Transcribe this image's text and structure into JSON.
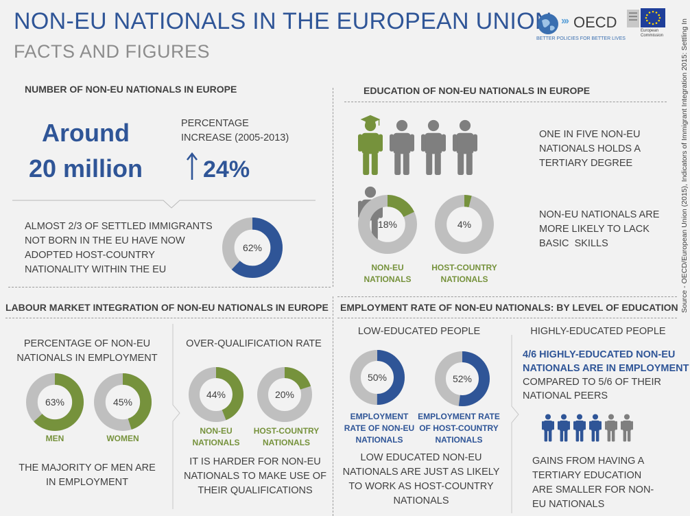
{
  "header": {
    "title": "NON-EU NATIONALS IN THE EUROPEAN UNION",
    "subtitle": "FACTS AND FIGURES",
    "oecd_logo_text": "OECD",
    "oecd_tagline": "BETTER POLICIES FOR BETTER LIVES",
    "ec_logo_text": "European Commission",
    "source": "Source - OECD/European Union (2015), Indicators of Immigrant Integration 2015: Settling In"
  },
  "number_section": {
    "heading": "NUMBER OF NON-EU NATIONALS IN EUROPE",
    "big_line1": "Around",
    "big_line2": "20 million",
    "pct_label_line1": "PERCENTAGE",
    "pct_label_line2": "INCREASE (2005-2013)",
    "increase_value": "24%",
    "nationality_text": [
      "ALMOST 2/3 OF SETTLED IMMIGRANTS",
      "NOT BORN IN THE EU HAVE NOW",
      "ADOPTED HOST-COUNTRY",
      "NATIONALITY WITHIN THE EU"
    ],
    "nationality_donut": {
      "value": 62,
      "label": "62%"
    }
  },
  "education_section": {
    "heading": "EDUCATION OF NON-EU NATIONALS IN EUROPE",
    "people_total": 5,
    "people_highlighted": 1,
    "tertiary_text": [
      "ONE IN FIVE NON-EU",
      "NATIONALS HOLDS A",
      "TERTIARY DEGREE"
    ],
    "donuts": [
      {
        "value": 18,
        "label": "18%",
        "caption_line1": "NON-EU",
        "caption_line2": "NATIONALS"
      },
      {
        "value": 4,
        "label": "4%",
        "caption_line1": "HOST-COUNTRY",
        "caption_line2": "NATIONALS"
      }
    ],
    "skills_text": [
      "NON-EU NATIONALS ARE",
      "MORE LIKELY TO LACK",
      "BASIC  SKILLS"
    ]
  },
  "labour_section": {
    "heading": "LABOUR MARKET INTEGRATION OF NON-EU NATIONALS IN EUROPE",
    "employment_label": [
      "PERCENTAGE OF NON-EU",
      "NATIONALS IN EMPLOYMENT"
    ],
    "employment_donuts": [
      {
        "value": 63,
        "label": "63%",
        "caption": "MEN"
      },
      {
        "value": 45,
        "label": "45%",
        "caption": "WOMEN"
      }
    ],
    "employment_text": [
      "THE MAJORITY OF MEN ARE",
      "IN EMPLOYMENT"
    ],
    "overqual_label": "OVER-QUALIFICATION RATE",
    "overqual_donuts": [
      {
        "value": 44,
        "label": "44%",
        "caption_line1": "NON-EU",
        "caption_line2": "NATIONALS"
      },
      {
        "value": 20,
        "label": "20%",
        "caption_line1": "HOST-COUNTRY",
        "caption_line2": "NATIONALS"
      }
    ],
    "overqual_text": [
      "IT IS HARDER FOR NON-EU",
      "NATIONALS TO MAKE USE OF",
      "THEIR QUALIFICATIONS"
    ]
  },
  "employment_rate_section": {
    "heading": "EMPLOYMENT RATE OF NON-EU NATIONALS: BY LEVEL OF EDUCATION",
    "low_label": "LOW-EDUCATED PEOPLE",
    "low_donuts": [
      {
        "value": 50,
        "label": "50%",
        "caption_line1": "EMPLOYMENT",
        "caption_line2": "RATE OF NON-EU",
        "caption_line3": "NATIONALS"
      },
      {
        "value": 52,
        "label": "52%",
        "caption_line1": "EMPLOYMENT RATE",
        "caption_line2": "OF HOST-COUNTRY",
        "caption_line3": "NATIONALS"
      }
    ],
    "low_text": [
      "LOW EDUCATED NON-EU",
      "NATIONALS ARE JUST AS LIKELY",
      "TO WORK AS HOST-COUNTRY",
      "NATIONALS"
    ],
    "high_label": "HIGHLY-EDUCATED PEOPLE",
    "high_bold": [
      "4/6 HIGHLY-EDUCATED NON-EU",
      "NATIONALS ARE IN EMPLOYMENT"
    ],
    "high_text": [
      "COMPARED TO 5/6 OF THEIR",
      "NATIONAL PEERS"
    ],
    "people_total": 6,
    "people_highlighted": 4,
    "gains_text": [
      "GAINS FROM HAVING A",
      "TERTIARY EDUCATION",
      "ARE SMALLER FOR NON-",
      "EU NATIONALS"
    ]
  },
  "colors": {
    "blue": "#2f5597",
    "green": "#76923c",
    "grey": "#bfbfbf",
    "dark_grey": "#7f7f7f"
  }
}
